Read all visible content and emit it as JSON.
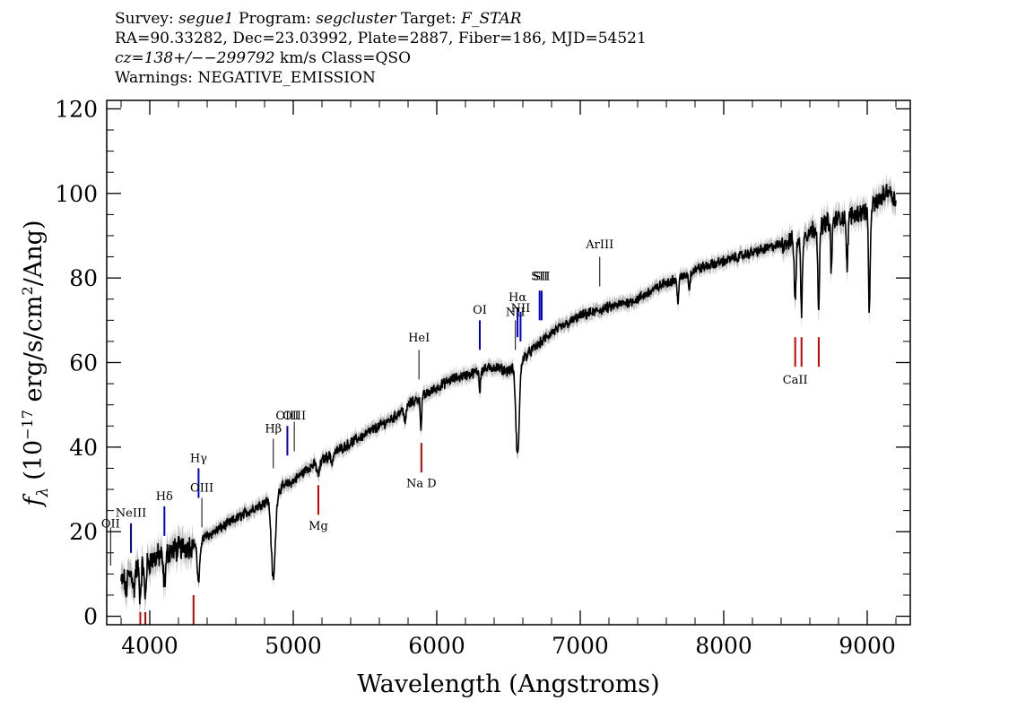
{
  "header": {
    "l1_survey_label": "Survey:",
    "l1_survey": "segue1",
    "l1_program_label": "Program:",
    "l1_program": "segcluster",
    "l1_target_label": "Target:",
    "l1_target": "F_STAR",
    "l2": "RA=90.33282, Dec=23.03992, Plate=2887, Fiber=186, MJD=54521",
    "l3_cz": "cz=138+/−−299792",
    "l3_rest": " km/s Class=QSO",
    "l4": "Warnings: NEGATIVE_EMISSION"
  },
  "chart_data": {
    "type": "line",
    "xlabel": "Wavelength (Angstroms)",
    "ylabel_main": "f",
    "ylabel_sub": "λ",
    "ylabel_unit_pre": "(10",
    "ylabel_unit_exp": "−17",
    "ylabel_unit_mid": " erg/s/cm",
    "ylabel_unit_exp2": "2",
    "ylabel_unit_post": "/Ang)",
    "xlim": [
      3700,
      9300
    ],
    "ylim": [
      -2,
      122
    ],
    "x_ticks": [
      4000,
      5000,
      6000,
      7000,
      8000,
      9000
    ],
    "x_tick_labels": [
      "4000",
      "5000",
      "6000",
      "7000",
      "8000",
      "9000"
    ],
    "y_ticks": [
      0,
      20,
      40,
      60,
      80,
      100,
      120
    ],
    "y_tick_labels": [
      "0",
      "20",
      "40",
      "60",
      "80",
      "100",
      "120"
    ],
    "colors": {
      "spectrum": "#000000",
      "error": "#bdbdbd",
      "emission": "#0000cc",
      "absorption": "#cc0000",
      "sky": "#000000"
    },
    "continuum": [
      [
        3800,
        8
      ],
      [
        3900,
        11
      ],
      [
        4000,
        13
      ],
      [
        4100,
        15
      ],
      [
        4200,
        16
      ],
      [
        4300,
        17
      ],
      [
        4400,
        19
      ],
      [
        4500,
        21
      ],
      [
        4600,
        23
      ],
      [
        4700,
        25
      ],
      [
        4800,
        27
      ],
      [
        4900,
        30
      ],
      [
        5000,
        32
      ],
      [
        5100,
        35
      ],
      [
        5200,
        37
      ],
      [
        5300,
        39
      ],
      [
        5400,
        41
      ],
      [
        5500,
        43
      ],
      [
        5600,
        45
      ],
      [
        5700,
        47
      ],
      [
        5800,
        50
      ],
      [
        5900,
        52
      ],
      [
        6000,
        54
      ],
      [
        6100,
        56
      ],
      [
        6200,
        57
      ],
      [
        6300,
        58
      ],
      [
        6400,
        59
      ],
      [
        6500,
        58
      ],
      [
        6600,
        61
      ],
      [
        6700,
        64
      ],
      [
        6800,
        67
      ],
      [
        6900,
        69
      ],
      [
        7000,
        71
      ],
      [
        7100,
        72
      ],
      [
        7200,
        73
      ],
      [
        7300,
        74
      ],
      [
        7400,
        75
      ],
      [
        7500,
        77
      ],
      [
        7600,
        79
      ],
      [
        7700,
        80
      ],
      [
        7800,
        82
      ],
      [
        7900,
        83
      ],
      [
        8000,
        84
      ],
      [
        8100,
        85
      ],
      [
        8200,
        86
      ],
      [
        8300,
        87
      ],
      [
        8400,
        88
      ],
      [
        8500,
        89
      ],
      [
        8600,
        91
      ],
      [
        8700,
        93
      ],
      [
        8800,
        94
      ],
      [
        8900,
        95
      ],
      [
        9000,
        96
      ],
      [
        9100,
        99
      ],
      [
        9150,
        101
      ],
      [
        9200,
        98
      ]
    ],
    "absorption_features": [
      [
        3835,
        4,
        5
      ],
      [
        3889,
        5,
        6
      ],
      [
        3933,
        7,
        6
      ],
      [
        3968,
        8,
        6
      ],
      [
        4102,
        7,
        9
      ],
      [
        4340,
        10,
        9
      ],
      [
        4861,
        20,
        14
      ],
      [
        5175,
        3,
        10
      ],
      [
        5270,
        2,
        8
      ],
      [
        5780,
        4,
        6
      ],
      [
        5890,
        7,
        5
      ],
      [
        6300,
        5,
        4
      ],
      [
        6563,
        22,
        12
      ],
      [
        7680,
        5,
        6
      ],
      [
        7760,
        4,
        5
      ],
      [
        8498,
        15,
        6
      ],
      [
        8542,
        18,
        6
      ],
      [
        8662,
        20,
        6
      ],
      [
        8750,
        12,
        5
      ],
      [
        8860,
        14,
        5
      ],
      [
        9015,
        25,
        6
      ]
    ],
    "spectrum_note": "flux vs wavelength",
    "emission_lines": [
      {
        "label": "OII",
        "x": 3727,
        "y_top": 21,
        "y_bottom": 12,
        "label_y": 21,
        "color": "#000000"
      },
      {
        "label": "NeIII",
        "x": 3869,
        "y_top": 22,
        "y_bottom": 15,
        "label_y": 23.5,
        "color": "#0000cc"
      },
      {
        "label": "Hδ",
        "x": 4102,
        "y_top": 26,
        "y_bottom": 19,
        "label_y": 27.5,
        "color": "#0000cc"
      },
      {
        "label": "Hγ",
        "x": 4340,
        "y_top": 35,
        "y_bottom": 28,
        "label_y": 36.5,
        "color": "#0000cc"
      },
      {
        "label": "OIII",
        "x": 4363,
        "y_top": 28,
        "y_bottom": 21,
        "label_y": 29.5,
        "color": "#000000"
      },
      {
        "label": "Hβ",
        "x": 4861,
        "y_top": 42,
        "y_bottom": 35,
        "label_y": 43.5,
        "color": "#000000"
      },
      {
        "label": "OIII",
        "x": 4959,
        "y_top": 45,
        "y_bottom": 38,
        "label_y": 46.5,
        "color": "#0000cc"
      },
      {
        "label": "OIII",
        "x": 5007,
        "y_top": 46,
        "y_bottom": 39,
        "label_y": 46.5,
        "color": "#000000"
      },
      {
        "label": "HeI",
        "x": 5876,
        "y_top": 63,
        "y_bottom": 56,
        "label_y": 65,
        "color": "#000000"
      },
      {
        "label": "OI",
        "x": 6300,
        "y_top": 70,
        "y_bottom": 63,
        "label_y": 71.5,
        "color": "#0000cc"
      },
      {
        "label": "NII",
        "x": 6548,
        "y_top": 70,
        "y_bottom": 63,
        "label_y": 71,
        "color": "#000000"
      },
      {
        "label": "Hα",
        "x": 6563,
        "y_top": 73,
        "y_bottom": 66,
        "label_y": 74.5,
        "color": "#0000cc"
      },
      {
        "label": "NII",
        "x": 6584,
        "y_top": 72,
        "y_bottom": 65,
        "label_y": 72,
        "color": "#0000cc"
      },
      {
        "label": "SII",
        "x": 6717,
        "y_top": 77,
        "y_bottom": 70,
        "label_y": 79.5,
        "color": "#0000cc"
      },
      {
        "label": "SII",
        "x": 6731,
        "y_top": 77,
        "y_bottom": 70,
        "label_y": 79.5,
        "color": "#0000cc"
      },
      {
        "label": "ArIII",
        "x": 7136,
        "y_top": 85,
        "y_bottom": 78,
        "label_y": 87,
        "color": "#000000"
      }
    ],
    "absorption_lines": [
      {
        "label": "",
        "x": 3934,
        "y_top": 1,
        "y_bottom": -2,
        "label_y": 0,
        "color": "#cc0000"
      },
      {
        "label": "",
        "x": 3969,
        "y_top": 1,
        "y_bottom": -2,
        "label_y": 0,
        "color": "#cc0000"
      },
      {
        "label": "",
        "x": 4305,
        "y_top": 5,
        "y_bottom": -2,
        "label_y": 0,
        "color": "#cc0000"
      },
      {
        "label": "Mg",
        "x": 5175,
        "y_top": 31,
        "y_bottom": 24,
        "label_y": 20.5,
        "color": "#cc0000"
      },
      {
        "label": "Na D",
        "x": 5893,
        "y_top": 41,
        "y_bottom": 34,
        "label_y": 30.5,
        "color": "#cc0000"
      },
      {
        "label": "CaII",
        "x": 8498,
        "y_top": 66,
        "y_bottom": 59,
        "label_y": 55,
        "color": "#cc0000"
      },
      {
        "label": "",
        "x": 8542,
        "y_top": 66,
        "y_bottom": 59,
        "label_y": 0,
        "color": "#cc0000"
      },
      {
        "label": "",
        "x": 8662,
        "y_top": 66,
        "y_bottom": 59,
        "label_y": 0,
        "color": "#cc0000"
      }
    ]
  }
}
